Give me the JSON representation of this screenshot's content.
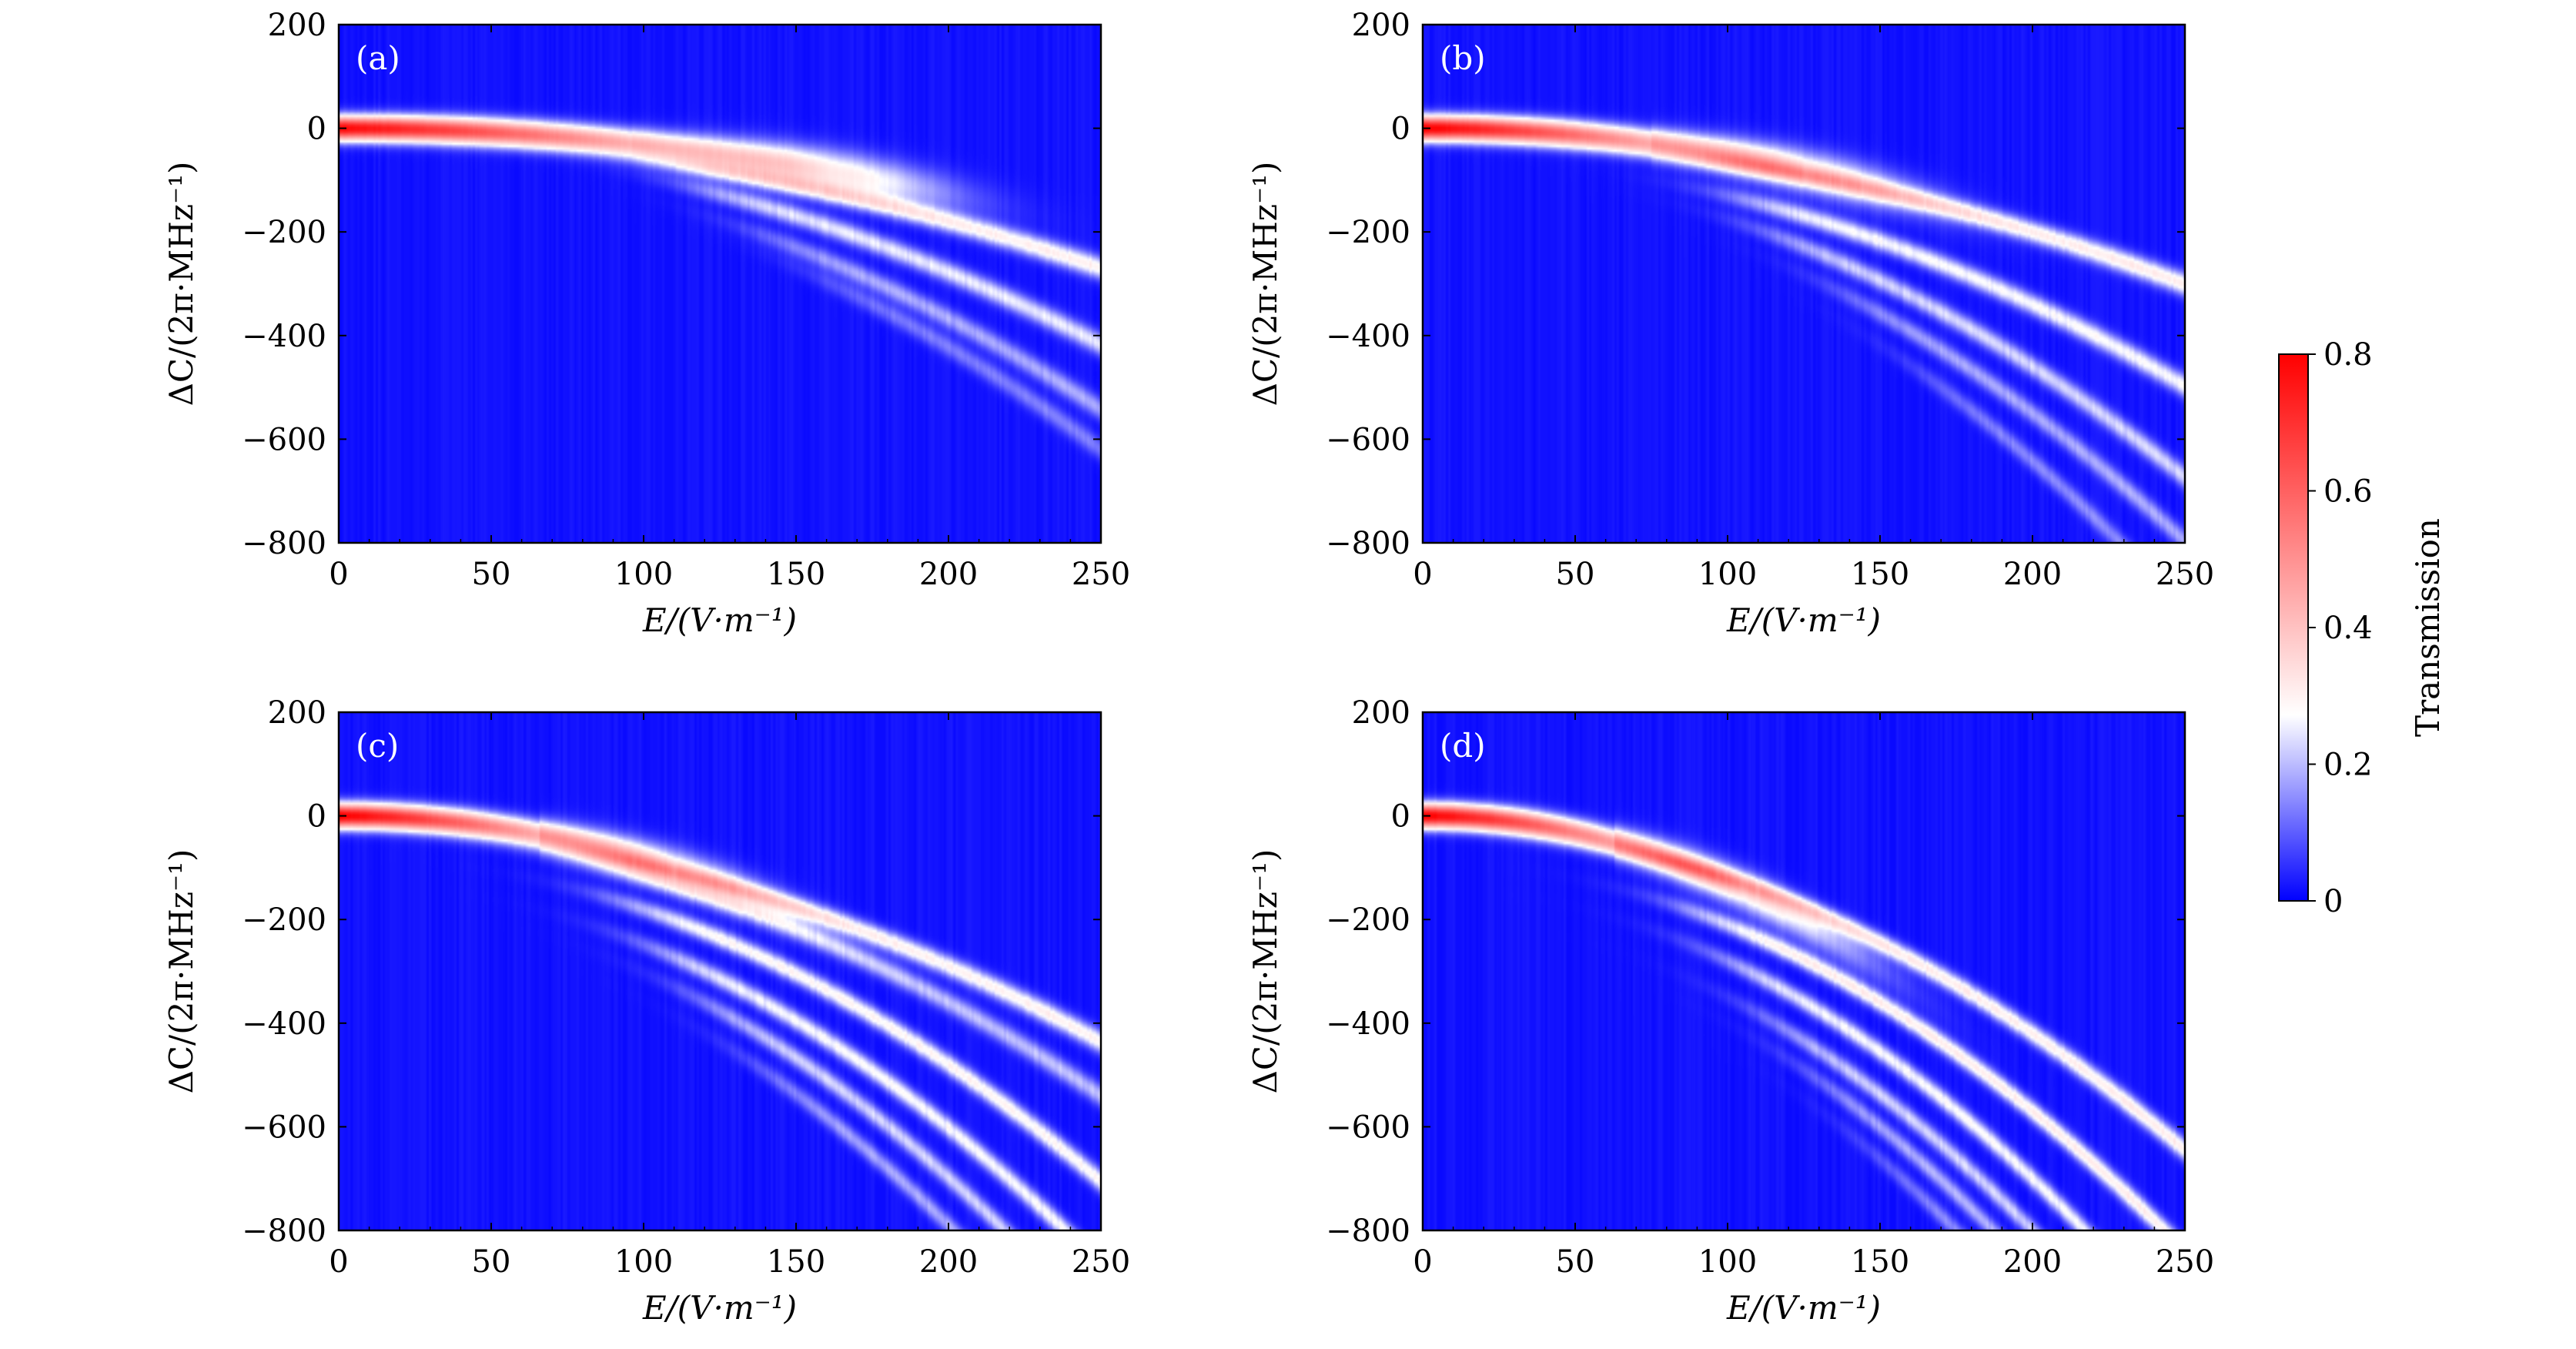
{
  "chart_data": {
    "type": "heatmap",
    "xlabel": "E/(V·m⁻¹)",
    "ylabel": "ΔC/(2π·MHz⁻¹)",
    "xlim": [
      0,
      250
    ],
    "ylim": [
      -800,
      200
    ],
    "xticks": [
      "0",
      "50",
      "100",
      "150",
      "200",
      "250"
    ],
    "yticks": [
      "200",
      "0",
      "−200",
      "−400",
      "−600",
      "−800"
    ],
    "colorbar": {
      "label": "Transmission",
      "range": [
        0,
        0.8
      ],
      "ticks": [
        "0.8",
        "0.6",
        "0.4",
        "0.2",
        "0"
      ],
      "colors": [
        "#0000ff",
        "#ffffff",
        "#ff0000"
      ],
      "white_level": 0.27
    },
    "panels": [
      {
        "label": "(a)",
        "main_curvature": 0.0032,
        "main_peak": 0.78,
        "main_fade_end": 160,
        "branches": [
          {
            "c": 0.004,
            "off": -20,
            "peak": 0.25,
            "start": 110
          },
          {
            "c": 0.0062,
            "off": -30,
            "peak": 0.2,
            "start": 120
          },
          {
            "c": 0.0078,
            "off": -55,
            "peak": 0.14,
            "start": 140
          },
          {
            "c": 0.0088,
            "off": -70,
            "peak": 0.1,
            "start": 160
          }
        ]
      },
      {
        "label": "(b)",
        "main_curvature": 0.0052,
        "main_peak": 0.8,
        "main_fade_end": 125,
        "branches": [
          {
            "c": 0.0045,
            "off": -20,
            "peak": 0.26,
            "start": 95
          },
          {
            "c": 0.007,
            "off": -60,
            "peak": 0.22,
            "start": 105
          },
          {
            "c": 0.0095,
            "off": -80,
            "peak": 0.18,
            "start": 115
          },
          {
            "c": 0.011,
            "off": -110,
            "peak": 0.14,
            "start": 140
          },
          {
            "c": 0.0128,
            "off": -130,
            "peak": 0.11,
            "start": 165
          }
        ]
      },
      {
        "label": "(c)",
        "main_curvature": 0.0085,
        "main_peak": 0.8,
        "main_fade_end": 110,
        "branches": [
          {
            "c": 0.0065,
            "off": -30,
            "peak": 0.25,
            "start": 85
          },
          {
            "c": 0.01,
            "off": -80,
            "peak": 0.24,
            "start": 95
          },
          {
            "c": 0.0118,
            "off": -130,
            "peak": 0.22,
            "start": 105
          },
          {
            "c": 0.0132,
            "off": -170,
            "peak": 0.18,
            "start": 120
          },
          {
            "c": 0.0145,
            "off": -210,
            "peak": 0.14,
            "start": 140
          },
          {
            "c": 0.008,
            "off": -40,
            "peak": 0.16,
            "start": 90
          }
        ]
      },
      {
        "label": "(d)",
        "main_curvature": 0.013,
        "main_peak": 0.8,
        "main_fade_end": 105,
        "branches": [
          {
            "c": 0.01,
            "off": -20,
            "peak": 0.26,
            "start": 75
          },
          {
            "c": 0.012,
            "off": -90,
            "peak": 0.26,
            "start": 90
          },
          {
            "c": 0.014,
            "off": -140,
            "peak": 0.22,
            "start": 100
          },
          {
            "c": 0.015,
            "off": -200,
            "peak": 0.18,
            "start": 115
          },
          {
            "c": 0.016,
            "off": -240,
            "peak": 0.15,
            "start": 130
          },
          {
            "c": 0.017,
            "off": -280,
            "peak": 0.12,
            "start": 150
          }
        ]
      }
    ]
  }
}
